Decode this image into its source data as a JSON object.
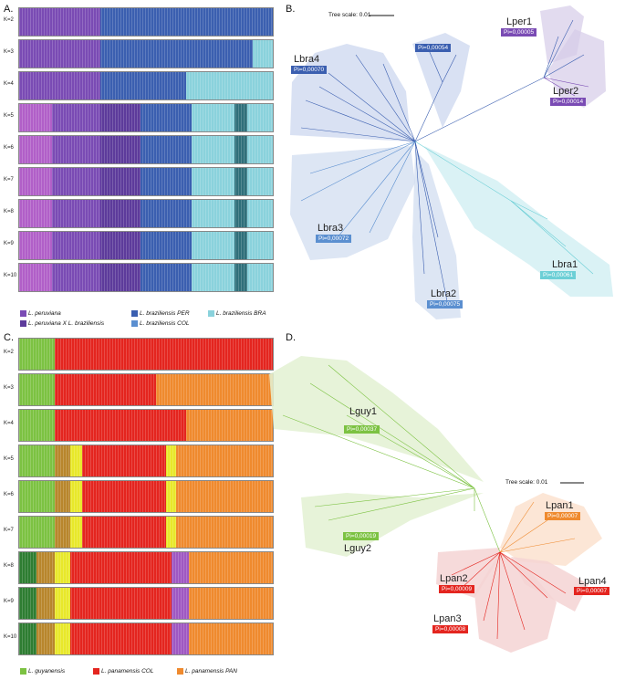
{
  "panels": {
    "a": "A.",
    "b": "B.",
    "c": "C.",
    "d": "D."
  },
  "structure_a": {
    "k_labels": [
      "K=2",
      "K=3",
      "K=4",
      "K=5",
      "K=6",
      "K=7",
      "K=8",
      "K=9",
      "K=10"
    ],
    "legend": [
      {
        "label": "L. peruviana",
        "color": "#7a4bb4"
      },
      {
        "label": "L. peruviana X L. braziliensis",
        "color": "#5d3b9b"
      },
      {
        "label": "L. braziliensis PER",
        "color": "#3b5fb0"
      },
      {
        "label": "L. braziliensis COL",
        "color": "#5b8fd0"
      },
      {
        "label": "L. braziliensis BRA",
        "color": "#8ad2dc"
      }
    ]
  },
  "structure_c": {
    "k_labels": [
      "K=2",
      "K=3",
      "K=4",
      "K=5",
      "K=6",
      "K=7",
      "K=8",
      "K=9",
      "K=10"
    ],
    "legend": [
      {
        "label": "L. guyanensis",
        "color": "#7cc242"
      },
      {
        "label": "L. panamensis COL",
        "color": "#e4251f"
      },
      {
        "label": "L. panamensis PAN",
        "color": "#ef8a2e"
      }
    ]
  },
  "tree_b": {
    "scale_label": "Tree scale: 0.01",
    "clades": [
      {
        "name": "Lper1",
        "pi": "Pi=0,00005",
        "color": "#7a4bb4"
      },
      {
        "name": "Lper2",
        "pi": "Pi=0,00014",
        "color": "#7a4bb4"
      },
      {
        "name": "Lbra4",
        "pi": "Pi=0,00070",
        "color": "#3b5fb0"
      },
      {
        "name": "",
        "pi": "Pi=0,00054",
        "color": "#3b5fb0"
      },
      {
        "name": "Lbra3",
        "pi": "Pi=0,00072",
        "color": "#5b8fd0"
      },
      {
        "name": "Lbra2",
        "pi": "Pi=0,00075",
        "color": "#5b8fd0"
      },
      {
        "name": "Lbra1",
        "pi": "Pi=0,00061",
        "color": "#6ccfd6"
      }
    ]
  },
  "tree_d": {
    "scale_label": "Tree scale: 0.01",
    "clades": [
      {
        "name": "Lguy1",
        "pi": "Pi=0,00037",
        "color": "#7cc242"
      },
      {
        "name": "Lguy2",
        "pi": "Pi=0,00019",
        "color": "#7cc242"
      },
      {
        "name": "Lpan1",
        "pi": "Pi=0,00007",
        "color": "#ef8a2e"
      },
      {
        "name": "Lpan2",
        "pi": "Pi=0,00009",
        "color": "#e4251f"
      },
      {
        "name": "Lpan4",
        "pi": "Pi=0,00007",
        "color": "#e4251f"
      },
      {
        "name": "Lpan3",
        "pi": "Pi=0,00008",
        "color": "#e4251f"
      }
    ]
  }
}
